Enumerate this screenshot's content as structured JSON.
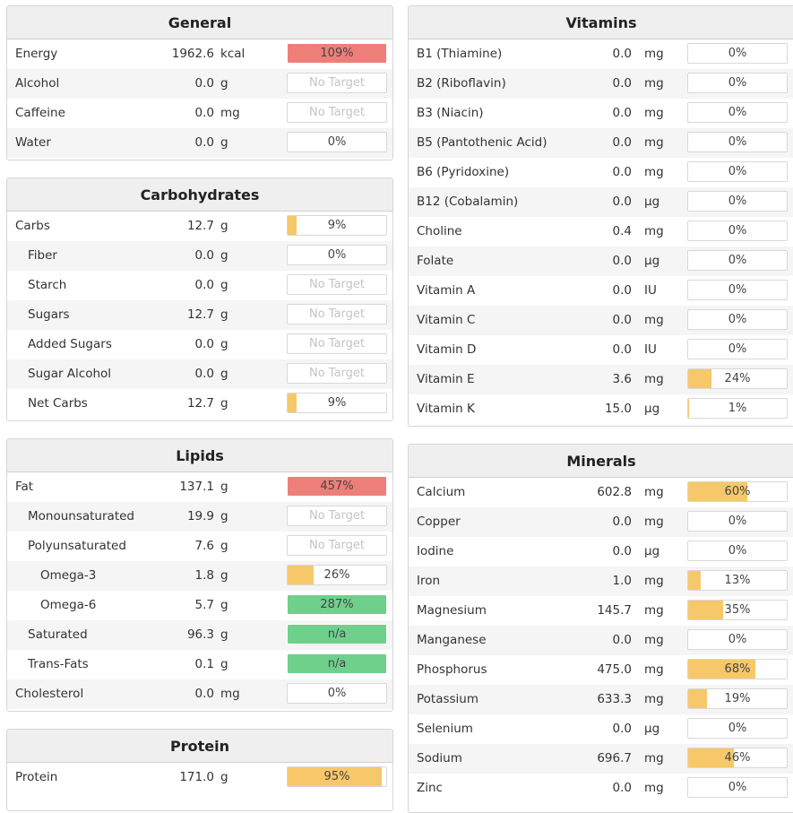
{
  "colors": {
    "over": "#ee7f78",
    "good": "#6fd08c",
    "partial": "#f6c86a",
    "header_bg": "#efefef",
    "alt_row": "#f5f5f5"
  },
  "left": [
    {
      "id": "general",
      "title": "General",
      "rows": [
        {
          "name": "Energy",
          "amount": "1962.6",
          "unit": "kcal",
          "bar": {
            "label": "109%",
            "value": 1.0,
            "status": "over"
          }
        },
        {
          "name": "Alcohol",
          "amount": "0.0",
          "unit": "g",
          "bar": {
            "label": "No Target",
            "value": 0,
            "status": "notarget"
          }
        },
        {
          "name": "Caffeine",
          "amount": "0.0",
          "unit": "mg",
          "bar": {
            "label": "No Target",
            "value": 0,
            "status": "notarget"
          }
        },
        {
          "name": "Water",
          "amount": "0.0",
          "unit": "g",
          "bar": {
            "label": "0%",
            "value": 0,
            "status": "partial"
          }
        }
      ]
    },
    {
      "id": "carbs",
      "title": "Carbohydrates",
      "rows": [
        {
          "name": "Carbs",
          "amount": "12.7",
          "unit": "g",
          "indent": 0,
          "bar": {
            "label": "9%",
            "value": 0.09,
            "status": "partial"
          }
        },
        {
          "name": "Fiber",
          "amount": "0.0",
          "unit": "g",
          "indent": 1,
          "bar": {
            "label": "0%",
            "value": 0,
            "status": "partial"
          }
        },
        {
          "name": "Starch",
          "amount": "0.0",
          "unit": "g",
          "indent": 1,
          "bar": {
            "label": "No Target",
            "value": 0,
            "status": "notarget"
          }
        },
        {
          "name": "Sugars",
          "amount": "12.7",
          "unit": "g",
          "indent": 1,
          "bar": {
            "label": "No Target",
            "value": 0,
            "status": "notarget"
          }
        },
        {
          "name": "Added Sugars",
          "amount": "0.0",
          "unit": "g",
          "indent": 1,
          "bar": {
            "label": "No Target",
            "value": 0,
            "status": "notarget"
          }
        },
        {
          "name": "Sugar Alcohol",
          "amount": "0.0",
          "unit": "g",
          "indent": 1,
          "bar": {
            "label": "No Target",
            "value": 0,
            "status": "notarget"
          }
        },
        {
          "name": "Net Carbs",
          "amount": "12.7",
          "unit": "g",
          "indent": 1,
          "bar": {
            "label": "9%",
            "value": 0.09,
            "status": "partial"
          }
        }
      ]
    },
    {
      "id": "lipids",
      "title": "Lipids",
      "rows": [
        {
          "name": "Fat",
          "amount": "137.1",
          "unit": "g",
          "indent": 0,
          "bar": {
            "label": "457%",
            "value": 1.0,
            "status": "over"
          }
        },
        {
          "name": "Monounsaturated",
          "amount": "19.9",
          "unit": "g",
          "indent": 1,
          "bar": {
            "label": "No Target",
            "value": 0,
            "status": "notarget"
          }
        },
        {
          "name": "Polyunsaturated",
          "amount": "7.6",
          "unit": "g",
          "indent": 1,
          "bar": {
            "label": "No Target",
            "value": 0,
            "status": "notarget"
          }
        },
        {
          "name": "Omega-3",
          "amount": "1.8",
          "unit": "g",
          "indent": 2,
          "bar": {
            "label": "26%",
            "value": 0.26,
            "status": "partial"
          }
        },
        {
          "name": "Omega-6",
          "amount": "5.7",
          "unit": "g",
          "indent": 2,
          "bar": {
            "label": "287%",
            "value": 1.0,
            "status": "good"
          }
        },
        {
          "name": "Saturated",
          "amount": "96.3",
          "unit": "g",
          "indent": 1,
          "bar": {
            "label": "n/a",
            "value": 1.0,
            "status": "good"
          }
        },
        {
          "name": "Trans-Fats",
          "amount": "0.1",
          "unit": "g",
          "indent": 1,
          "bar": {
            "label": "n/a",
            "value": 1.0,
            "status": "good"
          }
        },
        {
          "name": "Cholesterol",
          "amount": "0.0",
          "unit": "mg",
          "indent": 0,
          "bar": {
            "label": "0%",
            "value": 0,
            "status": "partial"
          }
        }
      ]
    },
    {
      "id": "protein",
      "title": "Protein",
      "rows": [
        {
          "name": "Protein",
          "amount": "171.0",
          "unit": "g",
          "indent": 0,
          "bar": {
            "label": "95%",
            "value": 0.95,
            "status": "partial"
          }
        }
      ]
    }
  ],
  "right": [
    {
      "id": "vitamins",
      "title": "Vitamins",
      "rows": [
        {
          "name": "B1 (Thiamine)",
          "amount": "0.0",
          "unit": "mg",
          "bar": {
            "label": "0%",
            "value": 0,
            "status": "partial"
          }
        },
        {
          "name": "B2 (Riboflavin)",
          "amount": "0.0",
          "unit": "mg",
          "bar": {
            "label": "0%",
            "value": 0,
            "status": "partial"
          }
        },
        {
          "name": "B3 (Niacin)",
          "amount": "0.0",
          "unit": "mg",
          "bar": {
            "label": "0%",
            "value": 0,
            "status": "partial"
          }
        },
        {
          "name": "B5 (Pantothenic Acid)",
          "amount": "0.0",
          "unit": "mg",
          "bar": {
            "label": "0%",
            "value": 0,
            "status": "partial"
          }
        },
        {
          "name": "B6 (Pyridoxine)",
          "amount": "0.0",
          "unit": "mg",
          "bar": {
            "label": "0%",
            "value": 0,
            "status": "partial"
          }
        },
        {
          "name": "B12 (Cobalamin)",
          "amount": "0.0",
          "unit": "µg",
          "bar": {
            "label": "0%",
            "value": 0,
            "status": "partial"
          }
        },
        {
          "name": "Choline",
          "amount": "0.4",
          "unit": "mg",
          "bar": {
            "label": "0%",
            "value": 0,
            "status": "partial"
          }
        },
        {
          "name": "Folate",
          "amount": "0.0",
          "unit": "µg",
          "bar": {
            "label": "0%",
            "value": 0,
            "status": "partial"
          }
        },
        {
          "name": "Vitamin A",
          "amount": "0.0",
          "unit": "IU",
          "bar": {
            "label": "0%",
            "value": 0,
            "status": "partial"
          }
        },
        {
          "name": "Vitamin C",
          "amount": "0.0",
          "unit": "mg",
          "bar": {
            "label": "0%",
            "value": 0,
            "status": "partial"
          }
        },
        {
          "name": "Vitamin D",
          "amount": "0.0",
          "unit": "IU",
          "bar": {
            "label": "0%",
            "value": 0,
            "status": "partial"
          }
        },
        {
          "name": "Vitamin E",
          "amount": "3.6",
          "unit": "mg",
          "bar": {
            "label": "24%",
            "value": 0.24,
            "status": "partial"
          }
        },
        {
          "name": "Vitamin K",
          "amount": "15.0",
          "unit": "µg",
          "bar": {
            "label": "1%",
            "value": 0.01,
            "status": "partial"
          }
        }
      ]
    },
    {
      "id": "minerals",
      "title": "Minerals",
      "rows": [
        {
          "name": "Calcium",
          "amount": "602.8",
          "unit": "mg",
          "bar": {
            "label": "60%",
            "value": 0.6,
            "status": "partial"
          }
        },
        {
          "name": "Copper",
          "amount": "0.0",
          "unit": "mg",
          "bar": {
            "label": "0%",
            "value": 0,
            "status": "partial"
          }
        },
        {
          "name": "Iodine",
          "amount": "0.0",
          "unit": "µg",
          "bar": {
            "label": "0%",
            "value": 0,
            "status": "partial"
          }
        },
        {
          "name": "Iron",
          "amount": "1.0",
          "unit": "mg",
          "bar": {
            "label": "13%",
            "value": 0.13,
            "status": "partial"
          }
        },
        {
          "name": "Magnesium",
          "amount": "145.7",
          "unit": "mg",
          "bar": {
            "label": "35%",
            "value": 0.35,
            "status": "partial"
          }
        },
        {
          "name": "Manganese",
          "amount": "0.0",
          "unit": "mg",
          "bar": {
            "label": "0%",
            "value": 0,
            "status": "partial"
          }
        },
        {
          "name": "Phosphorus",
          "amount": "475.0",
          "unit": "mg",
          "bar": {
            "label": "68%",
            "value": 0.68,
            "status": "partial"
          }
        },
        {
          "name": "Potassium",
          "amount": "633.3",
          "unit": "mg",
          "bar": {
            "label": "19%",
            "value": 0.19,
            "status": "partial"
          }
        },
        {
          "name": "Selenium",
          "amount": "0.0",
          "unit": "µg",
          "bar": {
            "label": "0%",
            "value": 0,
            "status": "partial"
          }
        },
        {
          "name": "Sodium",
          "amount": "696.7",
          "unit": "mg",
          "bar": {
            "label": "46%",
            "value": 0.46,
            "status": "partial"
          }
        },
        {
          "name": "Zinc",
          "amount": "0.0",
          "unit": "mg",
          "bar": {
            "label": "0%",
            "value": 0,
            "status": "partial"
          }
        }
      ]
    }
  ]
}
